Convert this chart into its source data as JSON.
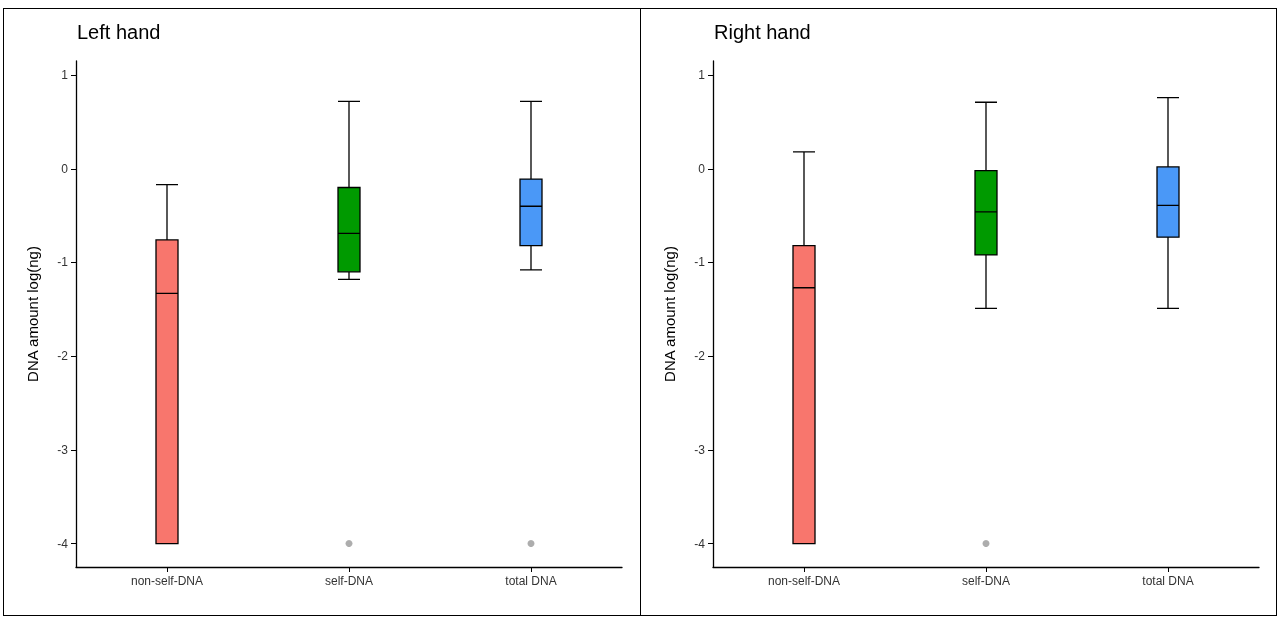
{
  "chart_data": [
    {
      "type": "box",
      "title": "Left hand",
      "ylabel": "DNA amount log(ng)",
      "categories": [
        "non-self-DNA",
        "self-DNA",
        "total DNA"
      ],
      "colors": [
        "#f8766d",
        "#009a00",
        "#4a98f7"
      ],
      "ylim": [
        -4.25,
        1.15
      ],
      "yticks": [
        -4,
        -3,
        -2,
        -1,
        0,
        1
      ],
      "grid": false,
      "boxes": [
        {
          "low": -4,
          "q1": -4,
          "median": -1.33,
          "q3": -0.76,
          "high": -0.17
        },
        {
          "low": -1.18,
          "q1": -1.1,
          "median": -0.69,
          "q3": -0.2,
          "high": 0.72,
          "outliers": [
            -4
          ]
        },
        {
          "low": -1.08,
          "q1": -0.82,
          "median": -0.4,
          "q3": -0.11,
          "high": 0.72,
          "outliers": [
            -4
          ]
        }
      ]
    },
    {
      "type": "box",
      "title": "Right hand",
      "ylabel": "DNA amount log(ng)",
      "categories": [
        "non-self-DNA",
        "self-DNA",
        "total DNA"
      ],
      "colors": [
        "#f8766d",
        "#009a00",
        "#4a98f7"
      ],
      "ylim": [
        -4.25,
        1.15
      ],
      "yticks": [
        -4,
        -3,
        -2,
        -1,
        0,
        1
      ],
      "grid": false,
      "boxes": [
        {
          "low": -4,
          "q1": -4,
          "median": -1.27,
          "q3": -0.82,
          "high": 0.18
        },
        {
          "low": -1.49,
          "q1": -0.92,
          "median": -0.46,
          "q3": -0.02,
          "high": 0.71,
          "outliers": [
            -4
          ]
        },
        {
          "low": -1.49,
          "q1": -0.73,
          "median": -0.39,
          "q3": 0.02,
          "high": 0.76
        }
      ]
    }
  ]
}
